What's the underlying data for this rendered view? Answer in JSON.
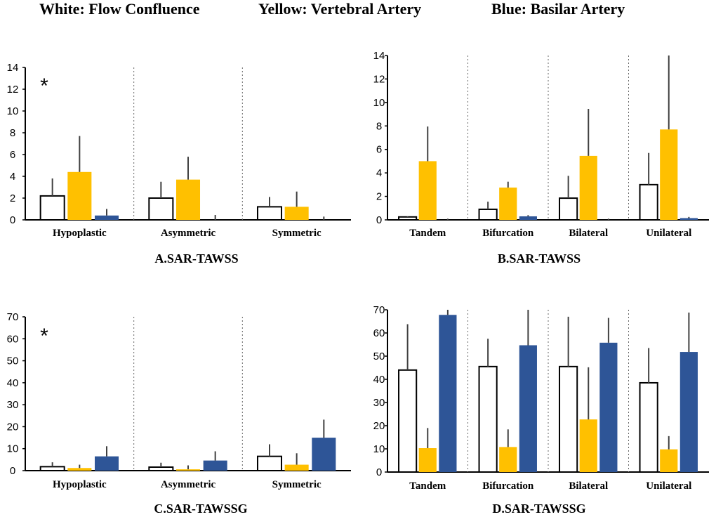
{
  "header": {
    "white_legend": "White: Flow Confluence",
    "yellow_legend": "Yellow: Vertebral Artery",
    "blue_legend": "Blue: Basilar Artery"
  },
  "colors": {
    "white": "#ffffff",
    "yellow": "#ffc000",
    "blue": "#2e5597",
    "axis": "#000000",
    "error": "#404040"
  },
  "chart_data": [
    {
      "type": "bar",
      "title": "A.SAR-TAWSS",
      "categories": [
        "Hypoplastic",
        "Asymmetric",
        "Symmetric"
      ],
      "ylim": [
        0,
        14
      ],
      "yticks": [
        0,
        2,
        4,
        6,
        8,
        10,
        12,
        14
      ],
      "significance_marker": "*",
      "series": [
        {
          "name": "Flow Confluence",
          "color_key": "white",
          "values": [
            2.2,
            2.0,
            1.2
          ],
          "errors": [
            1.6,
            1.5,
            0.9
          ]
        },
        {
          "name": "Vertebral Artery",
          "color_key": "yellow",
          "values": [
            4.4,
            3.7,
            1.2
          ],
          "errors": [
            3.3,
            2.1,
            1.4
          ]
        },
        {
          "name": "Basilar Artery",
          "color_key": "blue",
          "values": [
            0.4,
            0.0,
            0.0
          ],
          "errors": [
            0.6,
            0.45,
            0.3
          ]
        }
      ]
    },
    {
      "type": "bar",
      "title": "B.SAR-TAWSS",
      "categories": [
        "Tandem",
        "Bifurcation",
        "Bilateral",
        "Unilateral"
      ],
      "ylim": [
        0,
        14
      ],
      "yticks": [
        0,
        2,
        4,
        6,
        8,
        10,
        12,
        14
      ],
      "significance_marker": "",
      "series": [
        {
          "name": "Flow Confluence",
          "color_key": "white",
          "values": [
            0.25,
            0.9,
            1.85,
            3.0
          ],
          "errors": [
            0.05,
            0.65,
            1.9,
            2.7
          ]
        },
        {
          "name": "Vertebral Artery",
          "color_key": "yellow",
          "values": [
            5.0,
            2.75,
            5.45,
            7.7
          ],
          "errors": [
            2.95,
            0.5,
            4.0,
            6.3
          ]
        },
        {
          "name": "Basilar Artery",
          "color_key": "blue",
          "values": [
            0.0,
            0.3,
            0.0,
            0.15
          ],
          "errors": [
            0.1,
            0.1,
            0.1,
            0.1
          ]
        }
      ]
    },
    {
      "type": "bar",
      "title": "C.SAR-TAWSSG",
      "categories": [
        "Hypoplastic",
        "Asymmetric",
        "Symmetric"
      ],
      "ylim": [
        0,
        70
      ],
      "yticks": [
        0,
        10,
        20,
        30,
        40,
        50,
        60,
        70
      ],
      "significance_marker": "*",
      "series": [
        {
          "name": "Flow Confluence",
          "color_key": "white",
          "values": [
            1.8,
            1.6,
            6.5
          ],
          "errors": [
            2.0,
            2.0,
            5.5
          ]
        },
        {
          "name": "Vertebral Artery",
          "color_key": "yellow",
          "values": [
            1.2,
            0.6,
            2.7
          ],
          "errors": [
            1.5,
            1.8,
            5.2
          ]
        },
        {
          "name": "Basilar Artery",
          "color_key": "blue",
          "values": [
            6.5,
            4.6,
            15.0
          ],
          "errors": [
            4.6,
            4.2,
            8.2
          ]
        }
      ]
    },
    {
      "type": "bar",
      "title": "D.SAR-TAWSSG",
      "categories": [
        "Tandem",
        "Bifurcation",
        "Bilateral",
        "Unilateral"
      ],
      "ylim": [
        0,
        70
      ],
      "yticks": [
        0,
        10,
        20,
        30,
        40,
        50,
        60,
        70
      ],
      "significance_marker": "",
      "series": [
        {
          "name": "Flow Confluence",
          "color_key": "white",
          "values": [
            44,
            45.5,
            45.5,
            38.5
          ],
          "errors": [
            19.8,
            12.0,
            21.5,
            15.0
          ]
        },
        {
          "name": "Vertebral Artery",
          "color_key": "yellow",
          "values": [
            10.3,
            10.8,
            22.7,
            9.8
          ],
          "errors": [
            8.7,
            7.6,
            22.5,
            5.7
          ]
        },
        {
          "name": "Basilar Artery",
          "color_key": "blue",
          "values": [
            67.8,
            54.7,
            55.8,
            51.8
          ],
          "errors": [
            2.2,
            15.3,
            10.7,
            17.0
          ]
        }
      ]
    }
  ]
}
